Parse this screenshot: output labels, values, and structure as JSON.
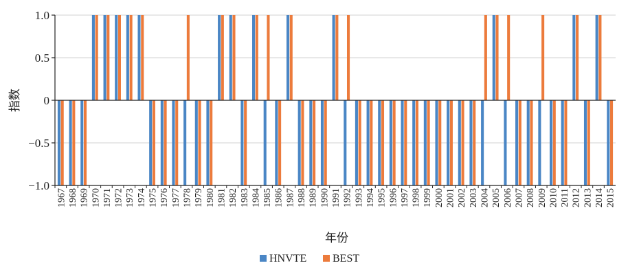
{
  "chart_data": {
    "type": "bar",
    "title": "",
    "xlabel": "年份",
    "ylabel": "指数",
    "ylim": [
      -1.0,
      1.0
    ],
    "yticks": [
      -1.0,
      -0.5,
      0,
      0.5,
      1.0
    ],
    "ytick_labels": [
      "−1.0",
      "−0.5",
      "0",
      "0.5",
      "1.0"
    ],
    "grid": "horizontal",
    "legend_position": "bottom-center",
    "categories": [
      "1967",
      "1968",
      "1969",
      "1970",
      "1971",
      "1972",
      "1973",
      "1974",
      "1975",
      "1976",
      "1977",
      "1978",
      "1979",
      "1980",
      "1981",
      "1982",
      "1983",
      "1984",
      "1985",
      "1986",
      "1987",
      "1988",
      "1989",
      "1990",
      "1991",
      "1992",
      "1993",
      "1994",
      "1995",
      "1996",
      "1997",
      "1998",
      "1999",
      "2000",
      "2001",
      "2002",
      "2003",
      "2004",
      "2005",
      "2006",
      "2007",
      "2008",
      "2009",
      "2010",
      "2011",
      "2012",
      "2013",
      "2014",
      "2015"
    ],
    "series": [
      {
        "name": "HNVTE",
        "color": "#4a86c5",
        "values": [
          -1,
          -1,
          -1,
          1,
          1,
          1,
          1,
          1,
          -1,
          -1,
          -1,
          -1,
          -1,
          -1,
          1,
          1,
          -1,
          1,
          -1,
          -1,
          1,
          -1,
          -1,
          -1,
          1,
          -1,
          -1,
          -1,
          -1,
          -1,
          -1,
          -1,
          -1,
          -1,
          -1,
          -1,
          -1,
          -1,
          1,
          -1,
          -1,
          -1,
          -1,
          -1,
          -1,
          1,
          -1,
          1,
          -1
        ]
      },
      {
        "name": "BEST",
        "color": "#ec7b3c",
        "values": [
          -1,
          -1,
          -1,
          1,
          1,
          1,
          1,
          1,
          -1,
          -1,
          -1,
          1,
          -1,
          -1,
          1,
          1,
          -1,
          1,
          1,
          -1,
          1,
          -1,
          -1,
          -1,
          1,
          1,
          -1,
          -1,
          -1,
          -1,
          -1,
          -1,
          -1,
          -1,
          -1,
          -1,
          -1,
          1,
          1,
          1,
          -1,
          -1,
          1,
          -1,
          -1,
          1,
          -1,
          1,
          -1
        ]
      }
    ]
  }
}
